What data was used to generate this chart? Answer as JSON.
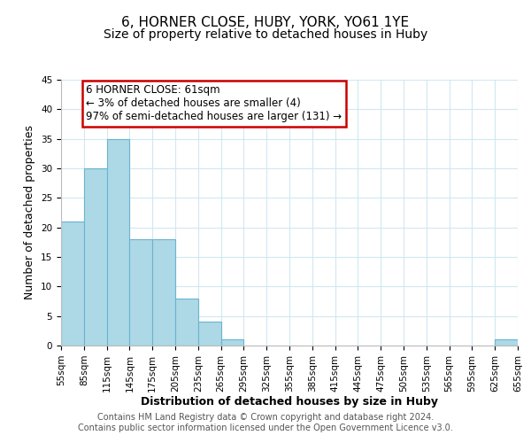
{
  "title": "6, HORNER CLOSE, HUBY, YORK, YO61 1YE",
  "subtitle": "Size of property relative to detached houses in Huby",
  "xlabel": "Distribution of detached houses by size in Huby",
  "ylabel": "Number of detached properties",
  "bar_color": "#add8e6",
  "bar_edge_color": "#6ab4d0",
  "bin_edges": [
    55,
    85,
    115,
    145,
    175,
    205,
    235,
    265,
    295,
    325,
    355,
    385,
    415,
    445,
    475,
    505,
    535,
    565,
    595,
    625,
    655
  ],
  "bar_heights": [
    21,
    30,
    35,
    18,
    18,
    8,
    4,
    1,
    0,
    0,
    0,
    0,
    0,
    0,
    0,
    0,
    0,
    0,
    0,
    1
  ],
  "ylim": [
    0,
    45
  ],
  "yticks": [
    0,
    5,
    10,
    15,
    20,
    25,
    30,
    35,
    40,
    45
  ],
  "xlim": [
    55,
    655
  ],
  "xtick_labels": [
    "55sqm",
    "85sqm",
    "115sqm",
    "145sqm",
    "175sqm",
    "205sqm",
    "235sqm",
    "265sqm",
    "295sqm",
    "325sqm",
    "355sqm",
    "385sqm",
    "415sqm",
    "445sqm",
    "475sqm",
    "505sqm",
    "535sqm",
    "565sqm",
    "595sqm",
    "625sqm",
    "655sqm"
  ],
  "annotation_title": "6 HORNER CLOSE: 61sqm",
  "annotation_line2": "← 3% of detached houses are smaller (4)",
  "annotation_line3": "97% of semi-detached houses are larger (131) →",
  "annotation_box_color": "#ffffff",
  "annotation_box_edge": "#cc0000",
  "footer_line1": "Contains HM Land Registry data © Crown copyright and database right 2024.",
  "footer_line2": "Contains public sector information licensed under the Open Government Licence v3.0.",
  "title_fontsize": 11,
  "subtitle_fontsize": 10,
  "axis_label_fontsize": 9,
  "tick_fontsize": 7.5,
  "annotation_fontsize": 8.5,
  "footer_fontsize": 7,
  "grid_color": "#d0e8f0",
  "background_color": "#ffffff"
}
